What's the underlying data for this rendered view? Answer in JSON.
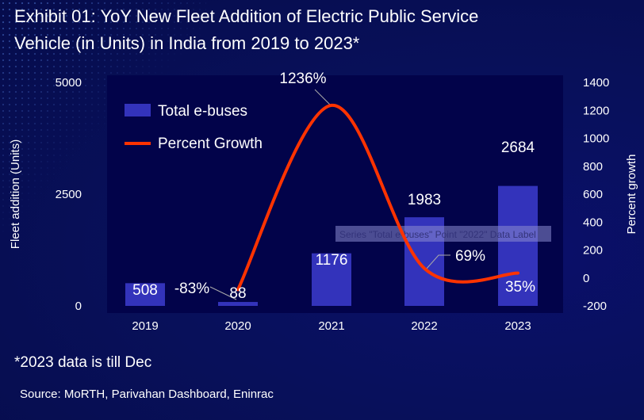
{
  "title_line1": "Exhibit 01: YoY New Fleet Addition of Electric Public Service",
  "title_line2": "Vehicle (in Units) in India from 2019 to 2023*",
  "footnote": "*2023 data is till Dec",
  "source": "Source:  MoRTH, Parivahan Dashboard, Eninrac",
  "tooltip": "Series \"Total e-buses\" Point \"2022\" Data Label",
  "chart_data": {
    "type": "bar+line",
    "categories": [
      "2019",
      "2020",
      "2021",
      "2022",
      "2023"
    ],
    "series": [
      {
        "name": "Total e-buses",
        "type": "bar",
        "axis": "left",
        "values": [
          508,
          88,
          1176,
          1983,
          2684
        ],
        "labels": [
          "508",
          "88",
          "1176",
          "1983",
          "2684"
        ],
        "color": "#3333bb"
      },
      {
        "name": "Percent Growth",
        "type": "line",
        "axis": "right",
        "values": [
          null,
          -83,
          1236,
          69,
          35
        ],
        "labels": [
          "",
          "-83%",
          "1236%",
          "69%",
          "35%"
        ],
        "color": "#ff3300"
      }
    ],
    "ylabel": "Fleet addition (Units)",
    "ylim": [
      0,
      5000
    ],
    "yticks": [
      "0",
      "2500",
      "5000"
    ],
    "y2label": "Percent growth",
    "y2lim": [
      -200,
      1400
    ],
    "y2ticks": [
      "-200",
      "0",
      "200",
      "400",
      "600",
      "800",
      "1000",
      "1200",
      "1400"
    ],
    "legend": "top-left",
    "grid": false
  }
}
